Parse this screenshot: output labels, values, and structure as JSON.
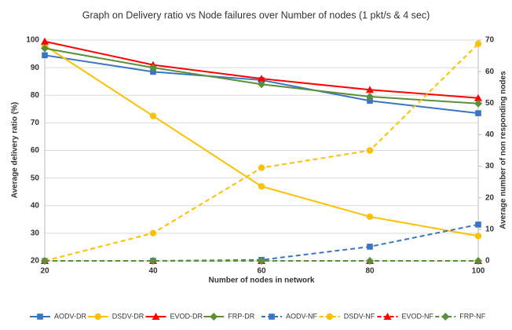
{
  "chart_data": {
    "type": "line",
    "title": "Graph on Delivery ratio vs Node failures over Number of nodes (1 pkt/s & 4 sec)",
    "xlabel": "Number of nodes in network",
    "ylabel": "Average delivery ratio (%)",
    "y2label": "Average number of non responding nodes",
    "x": [
      20,
      40,
      60,
      80,
      100
    ],
    "xlim": [
      20,
      100
    ],
    "xticks": [
      20,
      40,
      60,
      80,
      100
    ],
    "ylim": [
      20,
      100
    ],
    "yticks": [
      20,
      30,
      40,
      50,
      60,
      70,
      80,
      90,
      100
    ],
    "y2lim": [
      0,
      70
    ],
    "y2ticks": [
      0,
      10,
      20,
      30,
      40,
      50,
      60,
      70
    ],
    "grid": true,
    "legend": "bottom",
    "series": [
      {
        "name": "AODV-DR",
        "color": "#3a75c4",
        "marker": "square",
        "dashed": false,
        "values": [
          94.5,
          88.5,
          85.5,
          78,
          73.5
        ]
      },
      {
        "name": "DSDV-DR",
        "color": "#ffc000",
        "marker": "circle",
        "dashed": false,
        "values": [
          98,
          72.5,
          47,
          36,
          29
        ]
      },
      {
        "name": "EVOD-DR",
        "color": "#ff0000",
        "marker": "triangle",
        "dashed": false,
        "values": [
          99.5,
          91,
          86,
          82,
          79
        ]
      },
      {
        "name": "FRP-DR",
        "color": "#5b8f3a",
        "marker": "diamond",
        "dashed": false,
        "values": [
          97,
          90,
          84,
          79.5,
          77
        ]
      },
      {
        "name": "AODV-NF",
        "color": "#3a75c4",
        "marker": "square",
        "dashed": true,
        "axis": "y2",
        "values": [
          0,
          0,
          0.3,
          4.5,
          11.5
        ]
      },
      {
        "name": "DSDV-NF",
        "color": "#ffc000",
        "marker": "circle",
        "dashed": true,
        "axis": "y2",
        "values": [
          0,
          8.8,
          29.5,
          35,
          68.8
        ]
      },
      {
        "name": "EVOD-NF",
        "color": "#ff0000",
        "marker": "triangle",
        "dashed": true,
        "axis": "y2",
        "values": [
          0,
          0,
          0,
          0,
          0
        ]
      },
      {
        "name": "FRP-NF",
        "color": "#5b8f3a",
        "marker": "diamond",
        "dashed": true,
        "axis": "y2",
        "values": [
          0,
          0,
          0,
          0,
          0
        ]
      }
    ]
  }
}
